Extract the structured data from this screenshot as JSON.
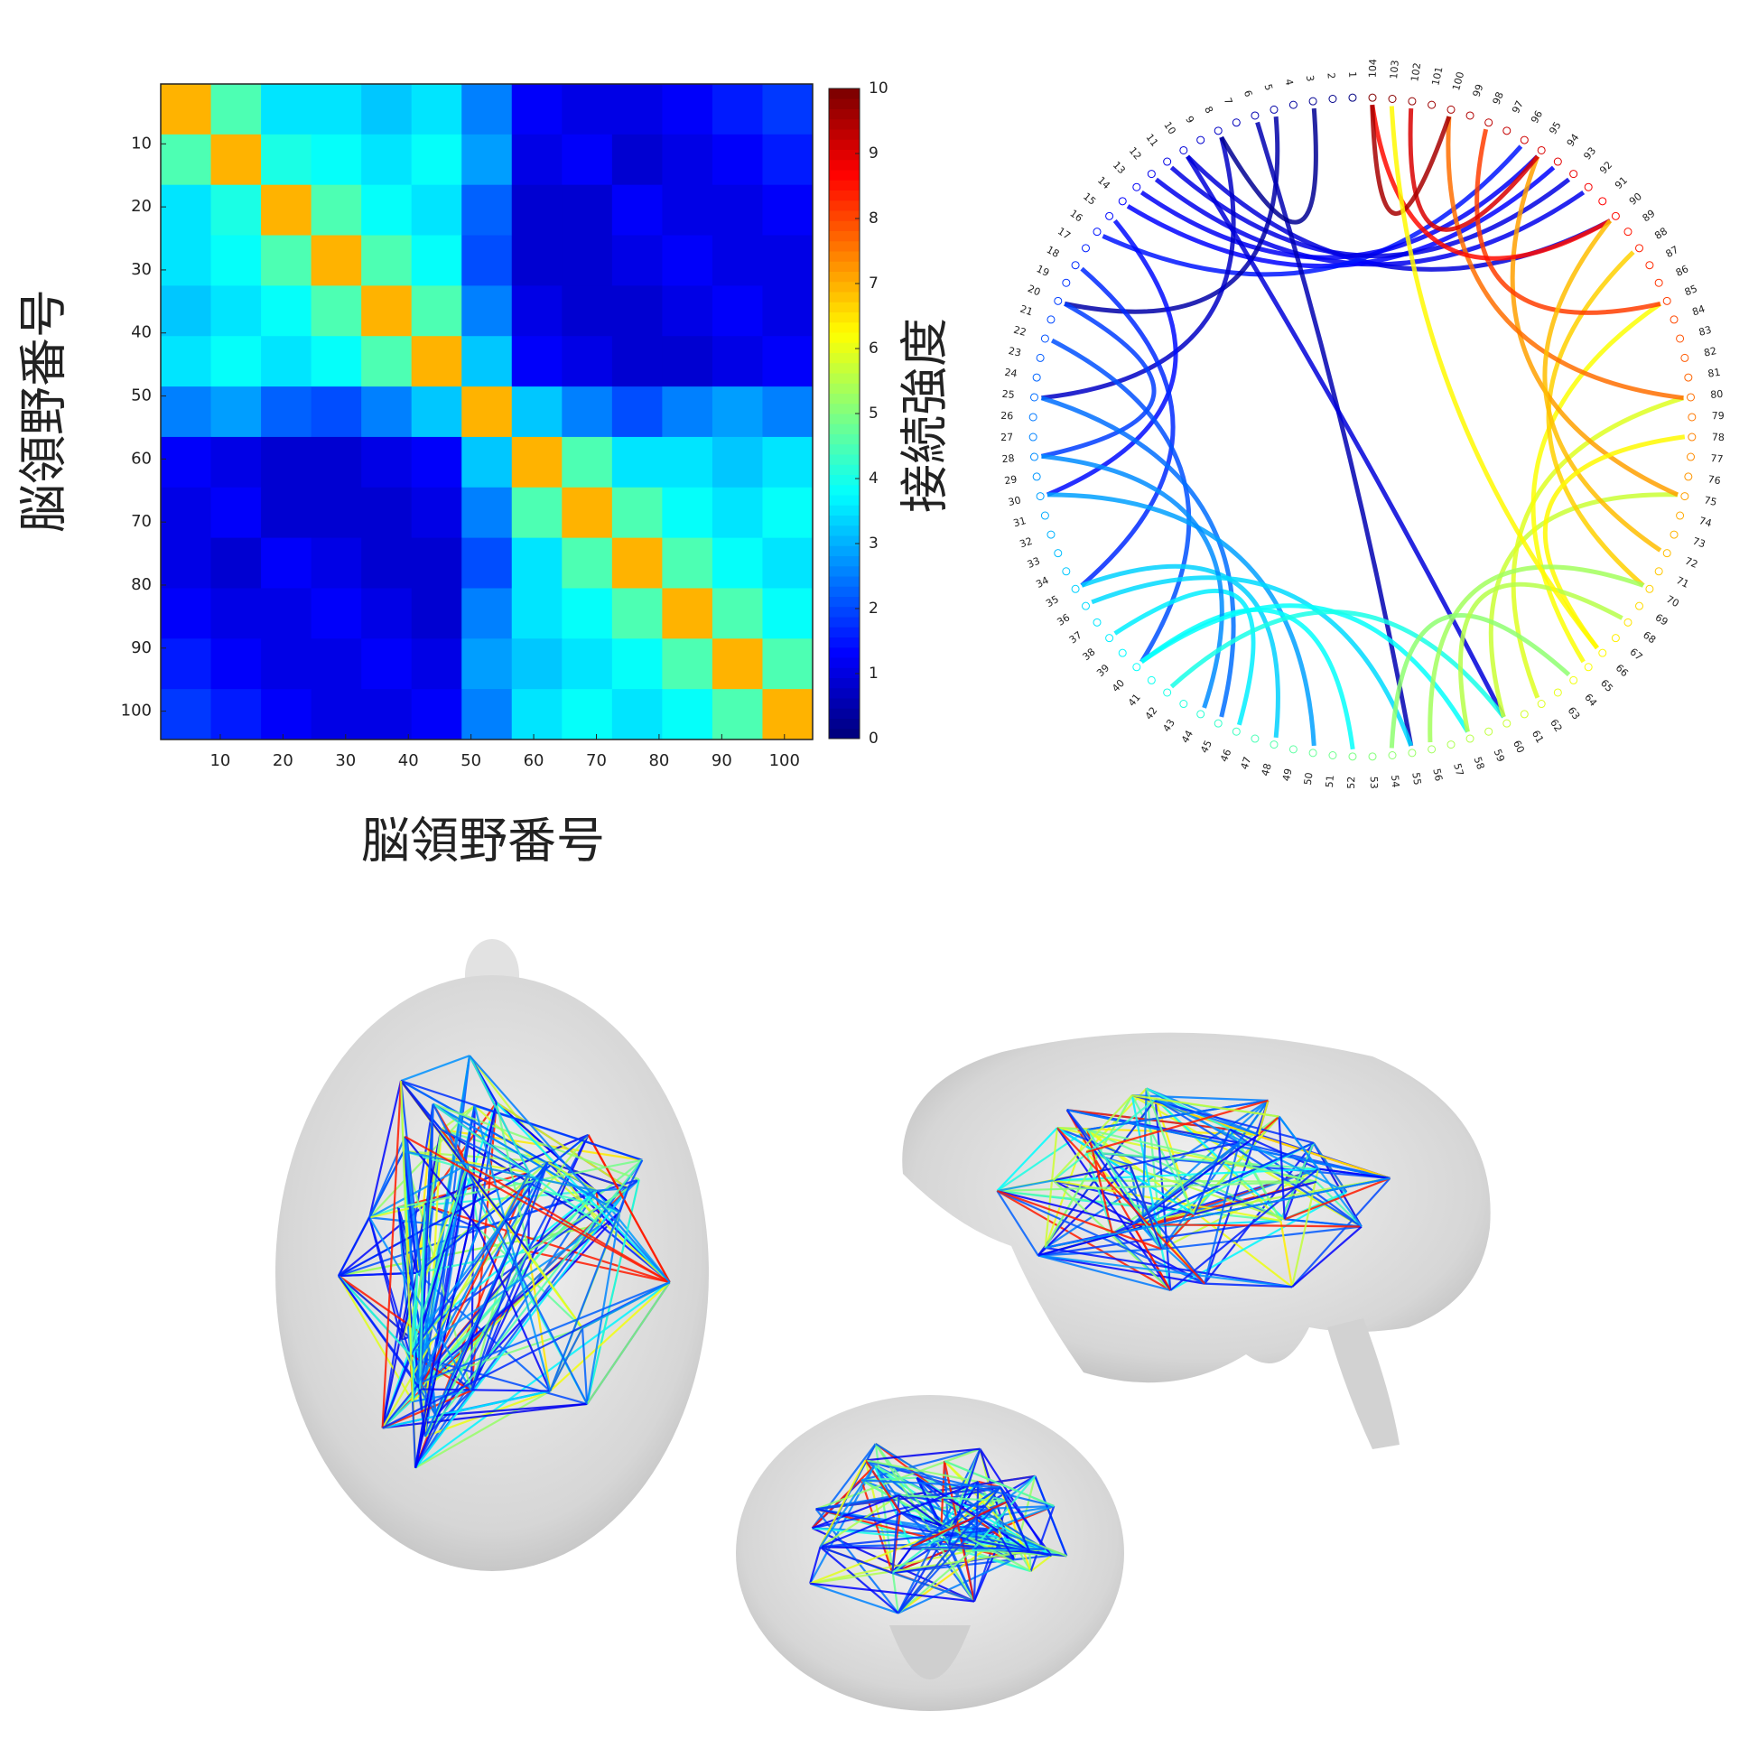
{
  "chart_data": [
    {
      "type": "heatmap",
      "xlabel": "脳領野番号",
      "ylabel": "脳領野番号",
      "colorbar_label": "接続強度",
      "colormap": "jet",
      "xlim": [
        0.5,
        104.5
      ],
      "ylim": [
        0.5,
        104.5
      ],
      "y_reversed": true,
      "xticks": [
        10,
        20,
        30,
        40,
        50,
        60,
        70,
        80,
        90,
        100
      ],
      "yticks": [
        10,
        20,
        30,
        40,
        50,
        60,
        70,
        80,
        90,
        100
      ],
      "xbins": [
        0.5,
        8.5,
        16.5,
        24.5,
        32.5,
        40.5,
        48.5,
        56.5,
        64.5,
        72.5,
        80.5,
        88.5,
        96.5,
        104.5
      ],
      "ybins": [
        0.5,
        8.5,
        16.5,
        24.5,
        32.5,
        40.5,
        48.5,
        56.5,
        64.5,
        72.5,
        80.5,
        88.5,
        96.5,
        104.5
      ],
      "clim": [
        0,
        10
      ],
      "cticks": [
        0,
        1,
        2,
        3,
        4,
        5,
        6,
        7,
        8,
        9,
        10
      ],
      "matrix": [
        [
          7.0,
          4.5,
          3.5,
          3.5,
          3.2,
          3.5,
          2.5,
          1.2,
          1.0,
          1.0,
          1.2,
          1.5,
          1.8
        ],
        [
          4.5,
          7.0,
          4.0,
          3.8,
          3.5,
          3.8,
          2.8,
          1.0,
          1.2,
          0.8,
          1.0,
          1.2,
          1.5
        ],
        [
          3.5,
          4.0,
          7.0,
          4.5,
          3.8,
          3.5,
          2.2,
          0.8,
          0.8,
          1.2,
          1.0,
          1.0,
          1.2
        ],
        [
          3.5,
          3.8,
          4.5,
          7.0,
          4.5,
          3.8,
          2.0,
          0.8,
          0.8,
          1.0,
          1.2,
          1.0,
          1.0
        ],
        [
          3.2,
          3.5,
          3.8,
          4.5,
          7.0,
          4.5,
          2.5,
          1.0,
          0.8,
          0.8,
          1.0,
          1.2,
          1.0
        ],
        [
          3.5,
          3.8,
          3.5,
          3.8,
          4.5,
          7.0,
          3.2,
          1.2,
          1.0,
          0.8,
          0.8,
          1.0,
          1.2
        ],
        [
          2.5,
          2.8,
          2.2,
          2.0,
          2.5,
          3.2,
          7.0,
          3.2,
          2.5,
          2.0,
          2.5,
          2.8,
          2.5
        ],
        [
          1.2,
          1.0,
          0.8,
          0.8,
          1.0,
          1.2,
          3.2,
          7.0,
          4.5,
          3.5,
          3.5,
          3.2,
          3.5
        ],
        [
          1.0,
          1.2,
          0.8,
          0.8,
          0.8,
          1.0,
          2.5,
          4.5,
          7.0,
          4.5,
          3.8,
          3.5,
          3.8
        ],
        [
          1.0,
          0.8,
          1.2,
          1.0,
          0.8,
          0.8,
          2.0,
          3.5,
          4.5,
          7.0,
          4.5,
          3.8,
          3.5
        ],
        [
          1.2,
          1.0,
          1.0,
          1.2,
          1.0,
          0.8,
          2.5,
          3.5,
          3.8,
          4.5,
          7.0,
          4.5,
          3.8
        ],
        [
          1.5,
          1.2,
          1.0,
          1.0,
          1.2,
          1.0,
          2.8,
          3.2,
          3.5,
          3.8,
          4.5,
          7.0,
          4.5
        ],
        [
          1.8,
          1.5,
          1.2,
          1.0,
          1.0,
          1.2,
          2.5,
          3.5,
          3.8,
          3.5,
          3.8,
          4.5,
          7.0
        ]
      ]
    },
    {
      "type": "chord",
      "colormap": "jet",
      "nodes": [
        1,
        2,
        3,
        4,
        5,
        6,
        7,
        8,
        9,
        10,
        11,
        12,
        13,
        14,
        15,
        16,
        17,
        18,
        19,
        20,
        21,
        22,
        23,
        24,
        25,
        26,
        27,
        28,
        29,
        30,
        31,
        32,
        33,
        34,
        35,
        36,
        37,
        38,
        39,
        40,
        41,
        42,
        43,
        44,
        45,
        46,
        47,
        48,
        49,
        50,
        51,
        52,
        53,
        54,
        55,
        56,
        57,
        58,
        59,
        60,
        61,
        62,
        63,
        64,
        65,
        66,
        67,
        68,
        69,
        70,
        71,
        72,
        73,
        74,
        75,
        76,
        77,
        78,
        79,
        80,
        81,
        82,
        83,
        84,
        85,
        86,
        87,
        88,
        89,
        90,
        91,
        92,
        93,
        94,
        95,
        96,
        97,
        98,
        99,
        100,
        101,
        102,
        103,
        104
      ],
      "links": [
        [
          10,
          90
        ],
        [
          12,
          92
        ],
        [
          14,
          94
        ],
        [
          16,
          96
        ],
        [
          13,
          95
        ],
        [
          11,
          93
        ],
        [
          5,
          20
        ],
        [
          8,
          25
        ],
        [
          15,
          30
        ],
        [
          18,
          35
        ],
        [
          20,
          28
        ],
        [
          22,
          40
        ],
        [
          25,
          45
        ],
        [
          30,
          50
        ],
        [
          35,
          48
        ],
        [
          38,
          46
        ],
        [
          40,
          52
        ],
        [
          28,
          44
        ],
        [
          6,
          55
        ],
        [
          10,
          60
        ],
        [
          36,
          55
        ],
        [
          40,
          58
        ],
        [
          42,
          60
        ],
        [
          60,
          75
        ],
        [
          62,
          80
        ],
        [
          65,
          85
        ],
        [
          70,
          88
        ],
        [
          75,
          95
        ],
        [
          80,
          100
        ],
        [
          85,
          98
        ],
        [
          90,
          104
        ],
        [
          95,
          102
        ],
        [
          100,
          104
        ],
        [
          72,
          90
        ],
        [
          66,
          78
        ],
        [
          56,
          70
        ],
        [
          54,
          64
        ],
        [
          58,
          68
        ],
        [
          66,
          103
        ],
        [
          3,
          8
        ]
      ]
    }
  ]
}
